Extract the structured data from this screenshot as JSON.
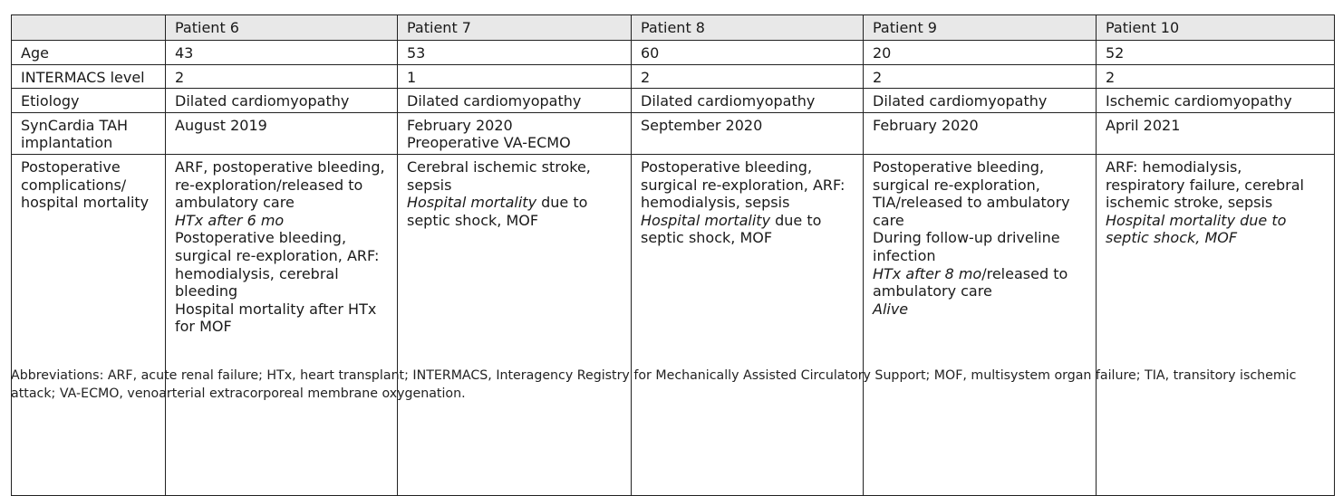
{
  "table": {
    "headers": [
      "",
      "Patient 6",
      "Patient 7",
      "Patient 8",
      "Patient 9",
      "Patient 10"
    ],
    "rows": [
      {
        "label": [
          "Age"
        ],
        "cells": [
          [
            {
              "t": "43"
            }
          ],
          [
            {
              "t": "53"
            }
          ],
          [
            {
              "t": "60"
            }
          ],
          [
            {
              "t": "20"
            }
          ],
          [
            {
              "t": "52"
            }
          ]
        ]
      },
      {
        "label": [
          "INTERMACS level"
        ],
        "cells": [
          [
            {
              "t": "2"
            }
          ],
          [
            {
              "t": "1"
            }
          ],
          [
            {
              "t": "2"
            }
          ],
          [
            {
              "t": "2"
            }
          ],
          [
            {
              "t": "2"
            }
          ]
        ]
      },
      {
        "label": [
          "Etiology"
        ],
        "cells": [
          [
            {
              "t": "Dilated cardiomyopathy"
            }
          ],
          [
            {
              "t": "Dilated cardiomyopathy"
            }
          ],
          [
            {
              "t": "Dilated cardiomyopathy"
            }
          ],
          [
            {
              "t": "Dilated cardiomyopathy"
            }
          ],
          [
            {
              "t": "Ischemic cardiomyopathy"
            }
          ]
        ]
      },
      {
        "label": [
          "SynCardia TAH",
          "implantation"
        ],
        "cells": [
          [
            {
              "t": "August 2019"
            }
          ],
          [
            {
              "t": "February 2020"
            },
            {
              "t": "Preoperative VA-ECMO"
            }
          ],
          [
            {
              "t": "September 2020"
            }
          ],
          [
            {
              "t": "February 2020"
            }
          ],
          [
            {
              "t": "April 2021"
            }
          ]
        ]
      },
      {
        "label": [
          "Postoperative",
          "complications/",
          "hospital mortality"
        ],
        "cells": [
          [
            {
              "t": "ARF, postoperative bleeding,"
            },
            {
              "t": "re-exploration/released to"
            },
            {
              "t": "ambulatory care"
            },
            {
              "t": "HTx after 6 mo",
              "i": true
            },
            {
              "t": "Postoperative bleeding,"
            },
            {
              "t": "surgical re-exploration, ARF:"
            },
            {
              "t": "hemodialysis, cerebral"
            },
            {
              "t": "bleeding"
            },
            {
              "t": "Hospital mortality after HTx"
            },
            {
              "t": "for MOF"
            }
          ],
          [
            {
              "t": "Cerebral ischemic stroke,"
            },
            {
              "t": "sepsis"
            },
            {
              "t": "Hospital mortality",
              "i": true,
              "rest": " due to"
            },
            {
              "t": "septic shock, MOF"
            }
          ],
          [
            {
              "t": "Postoperative bleeding,"
            },
            {
              "t": "surgical re-exploration, ARF:"
            },
            {
              "t": "hemodialysis, sepsis"
            },
            {
              "t": "Hospital mortality",
              "i": true,
              "rest": " due to"
            },
            {
              "t": "septic shock, MOF"
            }
          ],
          [
            {
              "t": "Postoperative bleeding,"
            },
            {
              "t": "surgical re-exploration,"
            },
            {
              "t": "TIA/released to ambulatory"
            },
            {
              "t": "care"
            },
            {
              "t": "During follow-up driveline"
            },
            {
              "t": "infection"
            },
            {
              "t": "HTx after 8 mo",
              "i": true,
              "rest": "/released to"
            },
            {
              "t": "ambulatory care"
            },
            {
              "t": "Alive",
              "i": true
            }
          ],
          [
            {
              "t": "ARF: hemodialysis,"
            },
            {
              "t": "respiratory failure, cerebral"
            },
            {
              "t": "ischemic stroke, sepsis"
            },
            {
              "t": "Hospital mortality due to",
              "i": true
            },
            {
              "t": "septic shock, MOF",
              "i": true
            }
          ]
        ]
      }
    ]
  },
  "footnote": "Abbreviations: ARF, acute renal failure; HTx, heart transplant; INTERMACS, Interagency Registry for Mechanically Assisted Circulatory Support; MOF, multisystem organ failure; TIA, transitory ischemic attack; VA-ECMO, venoarterial extracorporeal membrane oxygenation."
}
